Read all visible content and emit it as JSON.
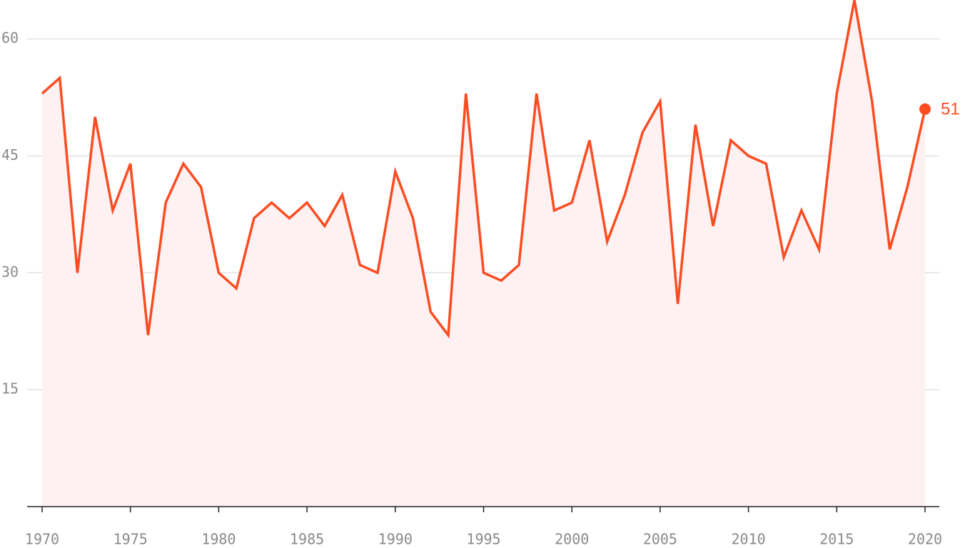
{
  "chart_data": {
    "type": "line",
    "x": [
      1970,
      1971,
      1972,
      1973,
      1974,
      1975,
      1976,
      1977,
      1978,
      1979,
      1980,
      1981,
      1982,
      1983,
      1984,
      1985,
      1986,
      1987,
      1988,
      1989,
      1990,
      1991,
      1992,
      1993,
      1994,
      1995,
      1996,
      1997,
      1998,
      1999,
      2000,
      2001,
      2002,
      2003,
      2004,
      2005,
      2006,
      2007,
      2008,
      2009,
      2010,
      2011,
      2012,
      2013,
      2014,
      2015,
      2016,
      2017,
      2018,
      2019,
      2020
    ],
    "values": [
      53,
      55,
      30,
      50,
      38,
      44,
      22,
      39,
      44,
      41,
      30,
      28,
      37,
      39,
      37,
      39,
      36,
      40,
      31,
      30,
      43,
      37,
      25,
      22,
      53,
      30,
      29,
      31,
      53,
      38,
      39,
      47,
      34,
      40,
      48,
      52,
      26,
      49,
      36,
      47,
      45,
      44,
      32,
      38,
      33,
      53,
      65,
      52,
      33,
      41,
      51
    ],
    "color": "#fc4c22",
    "area_color": "#fdf1f1",
    "xlim": [
      1970,
      2020
    ],
    "xticks": [
      1970,
      1975,
      1980,
      1985,
      1990,
      1995,
      2000,
      2005,
      2010,
      2015,
      2020
    ],
    "ylim": [
      0,
      65
    ],
    "yticks": [
      15,
      30,
      45,
      60
    ],
    "grid": true
  }
}
